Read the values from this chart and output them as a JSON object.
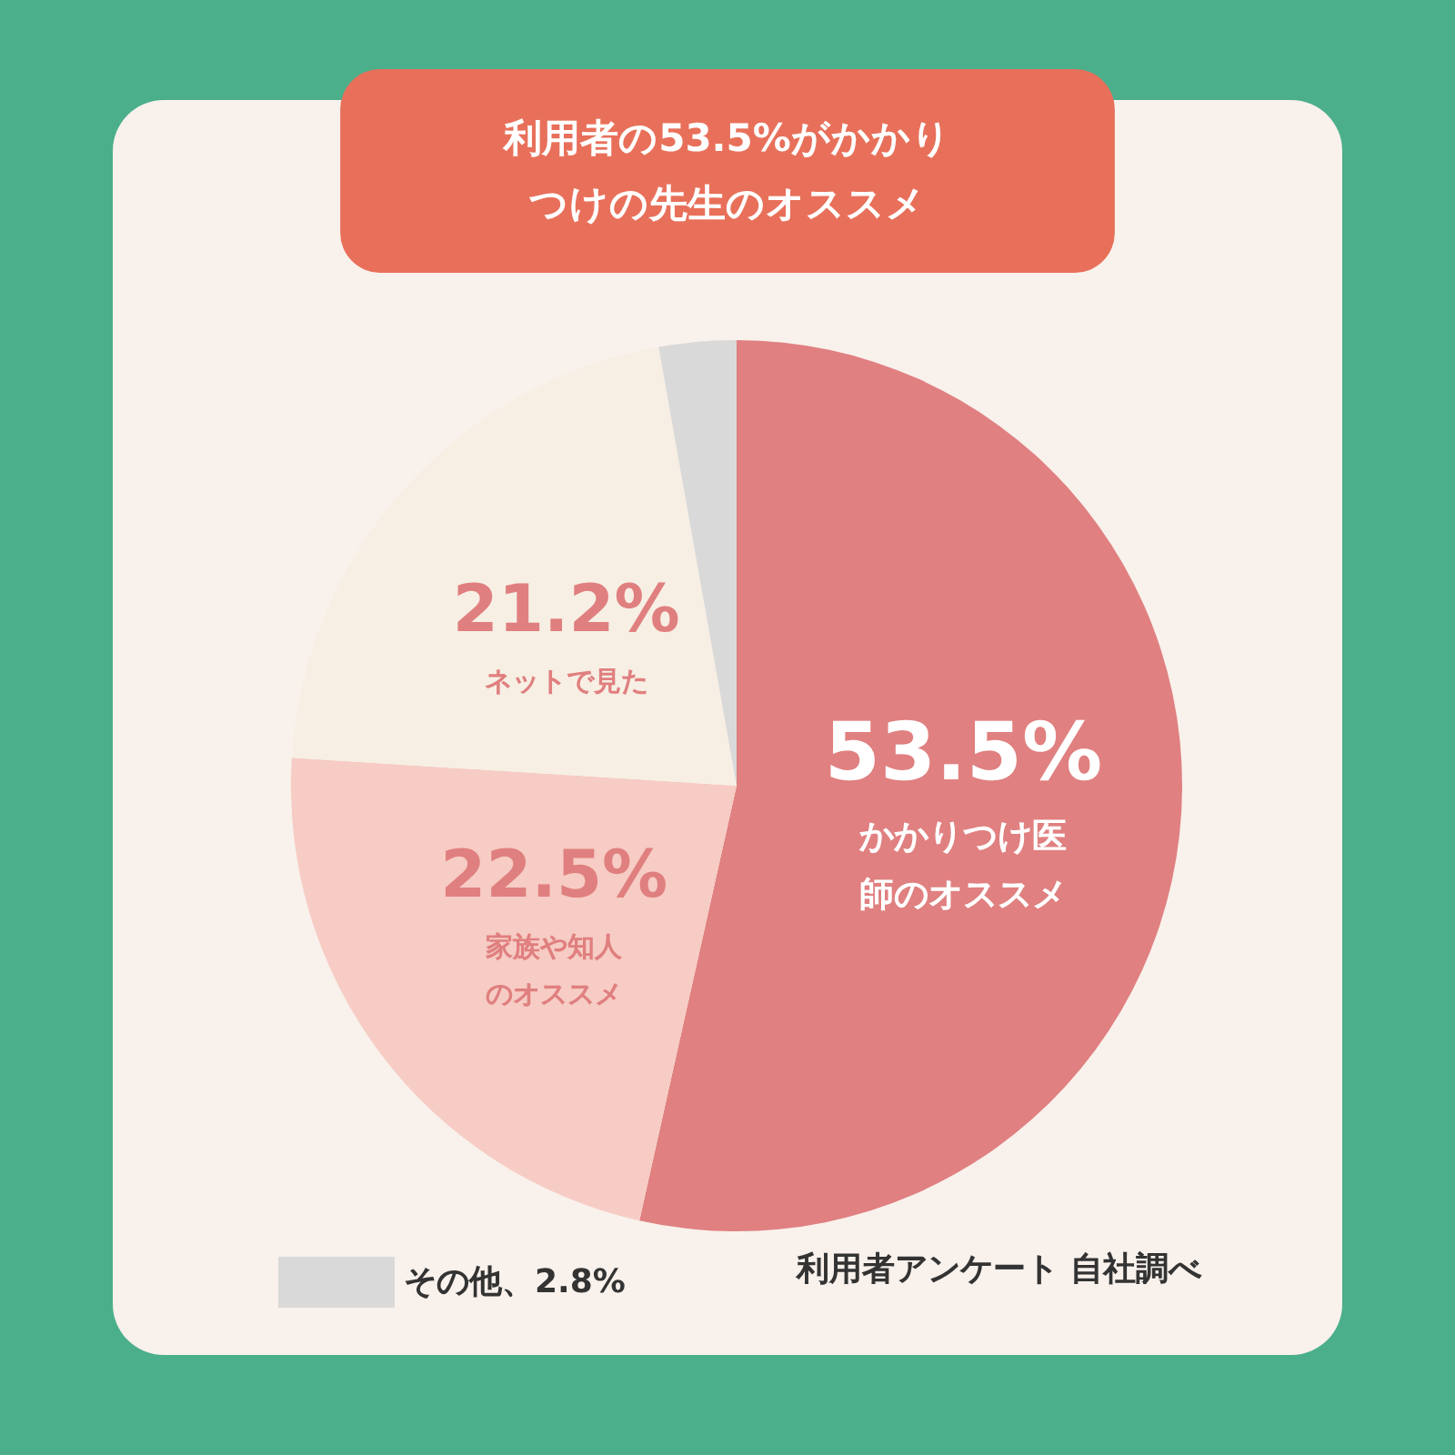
{
  "chart_data": {
    "type": "pie",
    "title": "利用者の53.5%がかかりつけの先生のオススメ",
    "categories": [
      "かかりつけ医師のオススメ",
      "家族や知人のオススメ",
      "ネットで見た",
      "その他、2.8%"
    ],
    "values": [
      53.5,
      22.5,
      21.2,
      2.8
    ],
    "colors": [
      "#e08080",
      "#f6ccc4",
      "#f7efe4",
      "#d9d9d9"
    ],
    "value_labels": [
      "53.5%",
      "22.5%",
      "21.2%",
      null
    ],
    "legend": "bottom",
    "annotations": [
      "利用者アンケート 自社調べ"
    ]
  }
}
